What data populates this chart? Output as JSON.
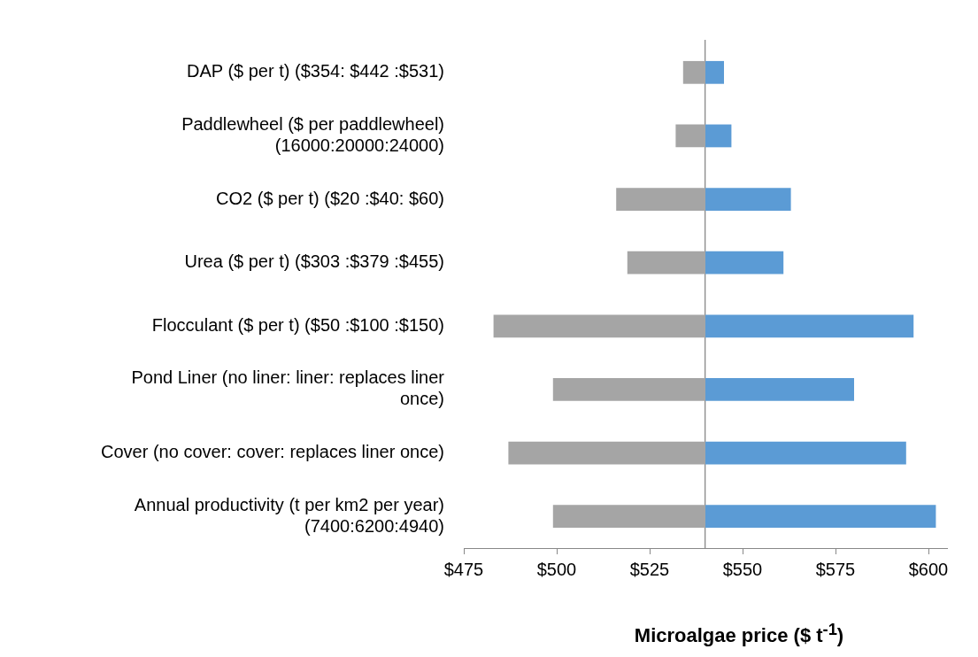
{
  "chart_data": {
    "type": "bar",
    "orientation": "horizontal",
    "xlabel": "Microalgae price ($  t$^{-1}$)",
    "categories": [
      "DAP ($ per t) ($354: $442 :$531)",
      "Paddlewheel ($ per paddlewheel)\n(16000:20000:24000)",
      "CO2 ($ per t) ($20 :$40: $60)",
      "Urea ($ per t) ($303 :$379 :$455)",
      "Flocculant ($ per t) ($50 :$100 :$150)",
      "Pond Liner (no liner: liner: replaces liner\nonce)",
      "Cover (no cover: cover: replaces liner once)",
      "Annual productivity (t per km2 per year)\n(7400:6200:4940)"
    ],
    "series": [
      {
        "color": "#a5a5a5",
        "base": [
          540,
          540,
          540,
          540,
          540,
          540,
          540,
          540
        ],
        "values": [
          -6,
          -8,
          -24,
          -21,
          -57,
          -41,
          -53,
          -41
        ]
      },
      {
        "color": "#5b9bd5",
        "base": [
          540,
          540,
          540,
          540,
          540,
          540,
          540,
          540
        ],
        "values": [
          5,
          7,
          23,
          21,
          56,
          40,
          54,
          62
        ]
      }
    ],
    "xlim": [
      475,
      605
    ],
    "xticks": [
      {
        "value": 475,
        "label": "$475"
      },
      {
        "value": 500,
        "label": "$500"
      },
      {
        "value": 525,
        "label": "$525"
      },
      {
        "value": 550,
        "label": "$550"
      },
      {
        "value": 575,
        "label": "$575"
      },
      {
        "value": 600,
        "label": "$600"
      }
    ],
    "ref_lines": [
      {
        "axis": "x",
        "value": 540
      }
    ]
  }
}
